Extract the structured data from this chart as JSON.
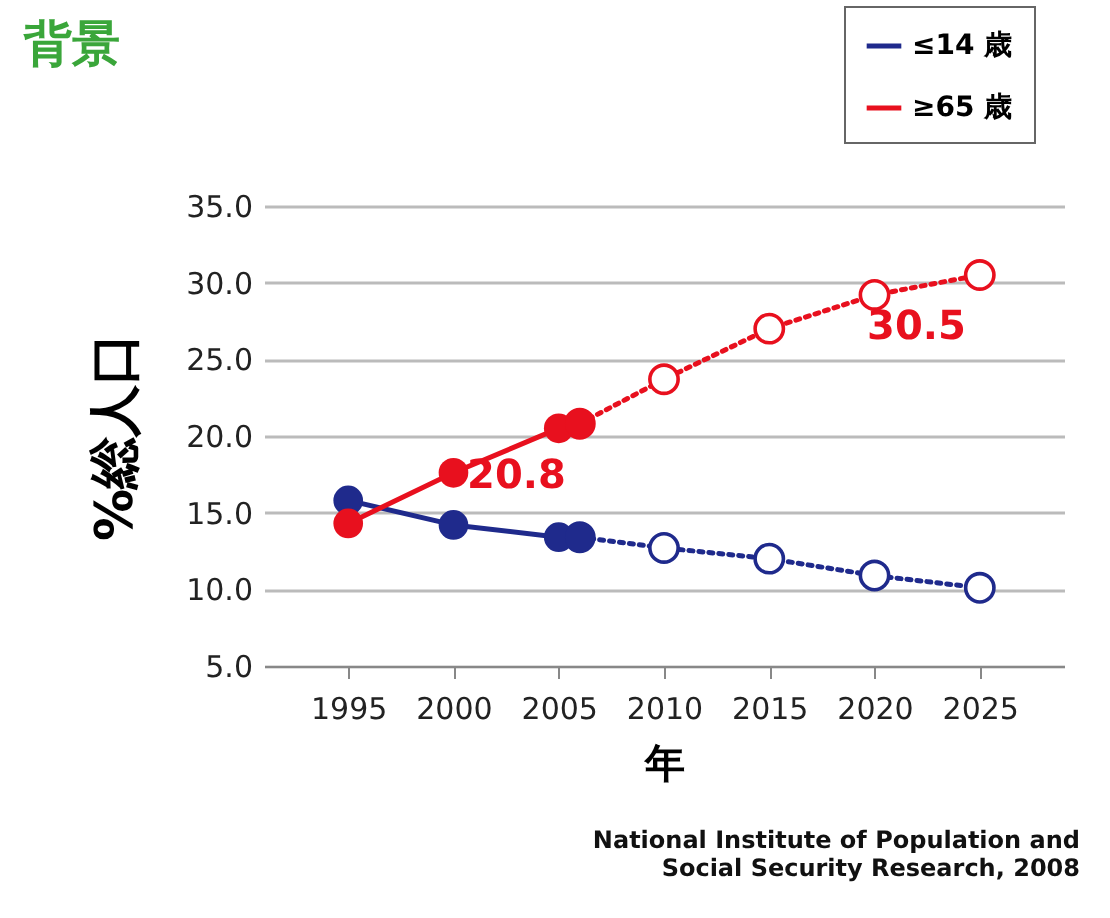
{
  "chart_data": {
    "type": "line",
    "title": "背景",
    "xlabel": "年",
    "ylabel": "%総人口",
    "xlim": [
      1991,
      2029
    ],
    "xticks": [
      1995,
      2000,
      2005,
      2010,
      2015,
      2020,
      2025
    ],
    "ylim": [
      5,
      35
    ],
    "yticks": [
      {
        "value": 5,
        "label": "5.0"
      },
      {
        "value": 10,
        "label": "10.0"
      },
      {
        "value": 15,
        "label": "15.0"
      },
      {
        "value": 20,
        "label": "20.0"
      },
      {
        "value": 25,
        "label": "25.0"
      },
      {
        "value": 30,
        "label": "30.0"
      },
      {
        "value": 35,
        "label": "35.0"
      }
    ],
    "grid": "y",
    "legend": "top right",
    "marker": "circle",
    "series": [
      {
        "type": "line",
        "color": "#1f2a8c",
        "line_style": "dotted",
        "x": [
          2006,
          2010,
          2015,
          2020,
          2025
        ],
        "values": [
          13.4,
          12.7,
          12.0,
          10.9,
          10.1
        ]
      },
      {
        "type": "line",
        "color": "#e8101e",
        "line_style": "dotted",
        "x": [
          2006,
          2010,
          2015,
          2020,
          2025
        ],
        "values": [
          20.8,
          23.7,
          27.0,
          29.2,
          30.5
        ],
        "value_labels": [
          null,
          null,
          null,
          null,
          "30.5"
        ]
      },
      {
        "name": "≤14 歳",
        "type": "line",
        "color": "#1f2a8c",
        "line_style": "solid",
        "x": [
          1995,
          2000,
          2005,
          2006
        ],
        "values": [
          15.8,
          14.2,
          13.4,
          13.4
        ]
      },
      {
        "name": "≥65 歳",
        "type": "line",
        "color": "#e8101e",
        "line_style": "solid",
        "x": [
          1995,
          2000,
          2005,
          2006
        ],
        "values": [
          14.3,
          17.6,
          20.5,
          20.8
        ],
        "value_labels": [
          null,
          null,
          null,
          "20.8"
        ]
      }
    ],
    "annotations": [
      "National Institute of Population and\nSocial Security Research, 2008"
    ]
  }
}
